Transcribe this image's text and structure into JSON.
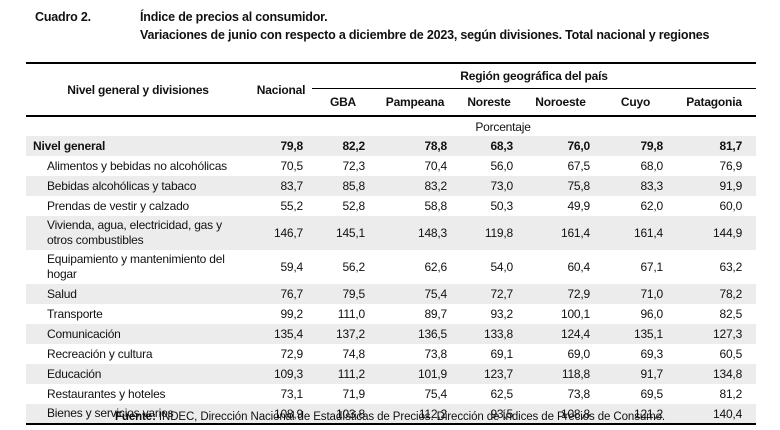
{
  "title": {
    "label": "Cuadro 2.",
    "line1": "Índice de precios al consumidor.",
    "line2": "Variaciones de junio con respecto a diciembre de 2023, según divisiones. Total nacional y regiones"
  },
  "table": {
    "left_header": "Nivel general y divisiones",
    "nacional_header": "Nacional",
    "region_group_header": "Región geográfica del país",
    "region_columns": [
      "GBA",
      "Pampeana",
      "Noreste",
      "Noroeste",
      "Cuyo",
      "Patagonia"
    ],
    "unit_label": "Porcentaje",
    "rows": [
      {
        "label": "Nivel general",
        "bold": true,
        "values": [
          "79,8",
          "82,2",
          "78,8",
          "68,3",
          "76,0",
          "79,8",
          "81,7"
        ]
      },
      {
        "label": "Alimentos y bebidas no alcohólicas",
        "values": [
          "70,5",
          "72,3",
          "70,4",
          "56,0",
          "67,5",
          "68,0",
          "76,9"
        ]
      },
      {
        "label": "Bebidas alcohólicas y tabaco",
        "values": [
          "83,7",
          "85,8",
          "83,2",
          "73,0",
          "75,8",
          "83,3",
          "91,9"
        ]
      },
      {
        "label": "Prendas de vestir y calzado",
        "values": [
          "55,2",
          "52,8",
          "58,8",
          "50,3",
          "49,9",
          "62,0",
          "60,0"
        ]
      },
      {
        "label": "Vivienda, agua, electricidad, gas y otros combustibles",
        "values": [
          "146,7",
          "145,1",
          "148,3",
          "119,8",
          "161,4",
          "161,4",
          "144,9"
        ]
      },
      {
        "label": "Equipamiento y mantenimiento del hogar",
        "values": [
          "59,4",
          "56,2",
          "62,6",
          "54,0",
          "60,4",
          "67,1",
          "63,2"
        ]
      },
      {
        "label": "Salud",
        "values": [
          "76,7",
          "79,5",
          "75,4",
          "72,7",
          "72,9",
          "71,0",
          "78,2"
        ]
      },
      {
        "label": "Transporte",
        "values": [
          "99,2",
          "111,0",
          "89,7",
          "93,2",
          "100,1",
          "96,0",
          "82,5"
        ]
      },
      {
        "label": "Comunicación",
        "values": [
          "135,4",
          "137,2",
          "136,5",
          "133,8",
          "124,4",
          "135,1",
          "127,3"
        ]
      },
      {
        "label": "Recreación y cultura",
        "values": [
          "72,9",
          "74,8",
          "73,8",
          "69,1",
          "69,0",
          "69,3",
          "60,5"
        ]
      },
      {
        "label": "Educación",
        "values": [
          "109,3",
          "111,2",
          "101,9",
          "123,7",
          "118,8",
          "91,7",
          "134,8"
        ]
      },
      {
        "label": "Restaurantes y hoteles",
        "values": [
          "73,1",
          "71,9",
          "75,4",
          "62,5",
          "73,8",
          "69,5",
          "81,2"
        ]
      },
      {
        "label": "Bienes y servicios varios",
        "values": [
          "108,9",
          "103,8",
          "112,2",
          "93,5",
          "108,8",
          "121,2",
          "140,4"
        ]
      }
    ]
  },
  "footer": {
    "source_label": "Fuente:",
    "source_text": " INDEC, Dirección Nacional de Estadísticas de Precios. Dirección de Índices de Precios de Consumo."
  },
  "colors": {
    "stripe": "#ececec",
    "text": "#111111",
    "rule": "#000000"
  }
}
